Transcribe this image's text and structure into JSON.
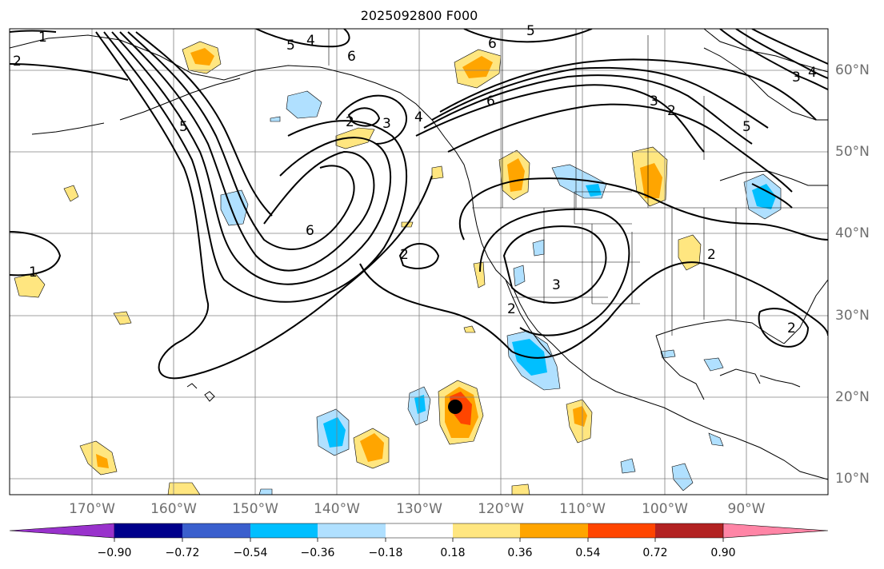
{
  "title": "2025092800 F000",
  "lon_labels": [
    "170°W",
    "160°W",
    "150°W",
    "140°W",
    "130°W",
    "120°W",
    "110°W",
    "100°W",
    "90°W"
  ],
  "lat_labels": [
    "60°N",
    "50°N",
    "40°N",
    "30°N",
    "20°N",
    "10°N"
  ],
  "colorbar": {
    "ticks": [
      "−0.90",
      "−0.72",
      "−0.54",
      "−0.36",
      "−0.18",
      "0.18",
      "0.36",
      "0.54",
      "0.72",
      "0.90"
    ],
    "colors": [
      "#9932cc",
      "#00008b",
      "#3a5fcd",
      "#00bfff",
      "#b0e0ff",
      "#ffffff",
      "#ffe680",
      "#ffa500",
      "#ff4500",
      "#b22222",
      "#ff85a6"
    ]
  },
  "contour_labels": [
    "1",
    "2",
    "4",
    "5",
    "6",
    "6",
    "6",
    "5",
    "3",
    "2",
    "2",
    "3",
    "4",
    "5",
    "6",
    "3",
    "2",
    "2",
    "1",
    "2",
    "5",
    "3",
    "2",
    "4"
  ],
  "colors": {
    "contour": "#000000",
    "grid": "#808080",
    "coast": "#000000",
    "marker": "#000000"
  }
}
